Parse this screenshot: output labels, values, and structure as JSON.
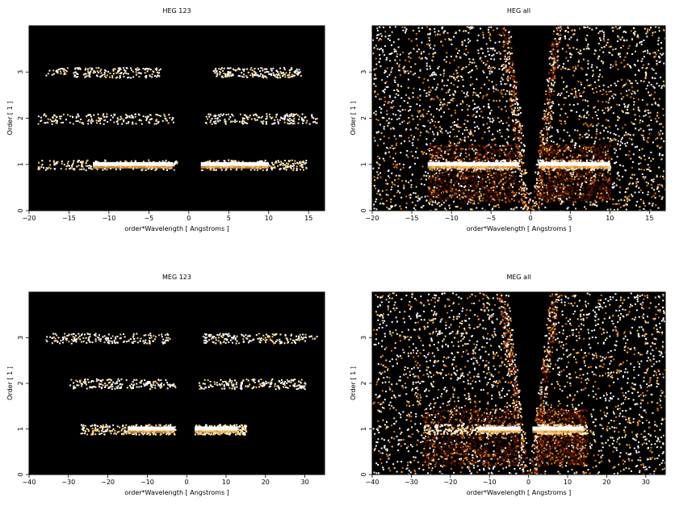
{
  "chart_data": [
    {
      "type": "heatmap",
      "title": "HEG 123",
      "xlabel": "order*Wavelength [ Angstroms ]",
      "ylabel": "Order [ 1 ]",
      "xlim": [
        -20,
        17
      ],
      "ylim": [
        0,
        4
      ],
      "xticks": [
        -20,
        -15,
        -10,
        -5,
        0,
        5,
        10,
        15
      ],
      "yticks": [
        0,
        1,
        2,
        3
      ],
      "background": "#000000",
      "bands": [
        {
          "order": 1,
          "x_ranges": [
            [
              -19,
              -1.5
            ],
            [
              1.5,
              15
            ]
          ],
          "bright_ranges": [
            [
              -12,
              -2
            ],
            [
              1.5,
              10
            ]
          ],
          "intensity": "high"
        },
        {
          "order": 2,
          "x_ranges": [
            [
              -19,
              -2
            ],
            [
              2,
              16
            ]
          ],
          "intensity": "low"
        },
        {
          "order": 3,
          "x_ranges": [
            [
              -18,
              -3.5
            ],
            [
              3,
              14
            ]
          ],
          "intensity": "low"
        }
      ]
    },
    {
      "type": "heatmap",
      "title": "HEG all",
      "xlabel": "order*Wavelength [ Angstroms ]",
      "ylabel": "Order [ 1 ]",
      "xlim": [
        -20,
        17
      ],
      "ylim": [
        0,
        4
      ],
      "xticks": [
        -20,
        -15,
        -10,
        -5,
        0,
        5,
        10,
        15
      ],
      "yticks": [
        0,
        1,
        2,
        3
      ],
      "background": "#000000",
      "bands": [
        {
          "order": 1,
          "x_ranges": [
            [
              -13,
              -1.5
            ],
            [
              1,
              10
            ]
          ],
          "bright_ranges": [
            [
              -13,
              -1.5
            ],
            [
              1,
              10
            ]
          ],
          "intensity": "high"
        }
      ],
      "scattered_noise": "dense"
    },
    {
      "type": "heatmap",
      "title": "MEG 123",
      "xlabel": "order*Wavelength [ Angstroms ]",
      "ylabel": "Order [ 1 ]",
      "xlim": [
        -40,
        35
      ],
      "ylim": [
        0,
        4
      ],
      "xticks": [
        -40,
        -30,
        -20,
        -10,
        0,
        10,
        20,
        30
      ],
      "yticks": [
        0,
        1,
        2,
        3
      ],
      "background": "#000000",
      "bands": [
        {
          "order": 1,
          "x_ranges": [
            [
              -27,
              -3
            ],
            [
              2,
              15
            ]
          ],
          "bright_ranges": [
            [
              -15,
              -3
            ],
            [
              2,
              13
            ]
          ],
          "intensity": "high"
        },
        {
          "order": 2,
          "x_ranges": [
            [
              -30,
              -3
            ],
            [
              3,
              30
            ]
          ],
          "intensity": "low"
        },
        {
          "order": 3,
          "x_ranges": [
            [
              -36,
              -4
            ],
            [
              4,
              33
            ]
          ],
          "intensity": "low"
        }
      ]
    },
    {
      "type": "heatmap",
      "title": "MEG all",
      "xlabel": "order*Wavelength [ Angstroms ]",
      "ylabel": "Order [ 1 ]",
      "xlim": [
        -40,
        35
      ],
      "ylim": [
        0,
        4
      ],
      "xticks": [
        -40,
        -30,
        -20,
        -10,
        0,
        10,
        20,
        30
      ],
      "yticks": [
        0,
        1,
        2,
        3
      ],
      "background": "#000000",
      "bands": [
        {
          "order": 1,
          "x_ranges": [
            [
              -27,
              -3
            ],
            [
              2,
              15
            ]
          ],
          "bright_ranges": [
            [
              -13,
              -2
            ],
            [
              1,
              14
            ]
          ],
          "intensity": "high"
        }
      ],
      "scattered_noise": "dense"
    }
  ],
  "colors": {
    "background": "#000000",
    "low": "#8b1a00",
    "mid": "#e07a10",
    "high": "#ffffff"
  }
}
